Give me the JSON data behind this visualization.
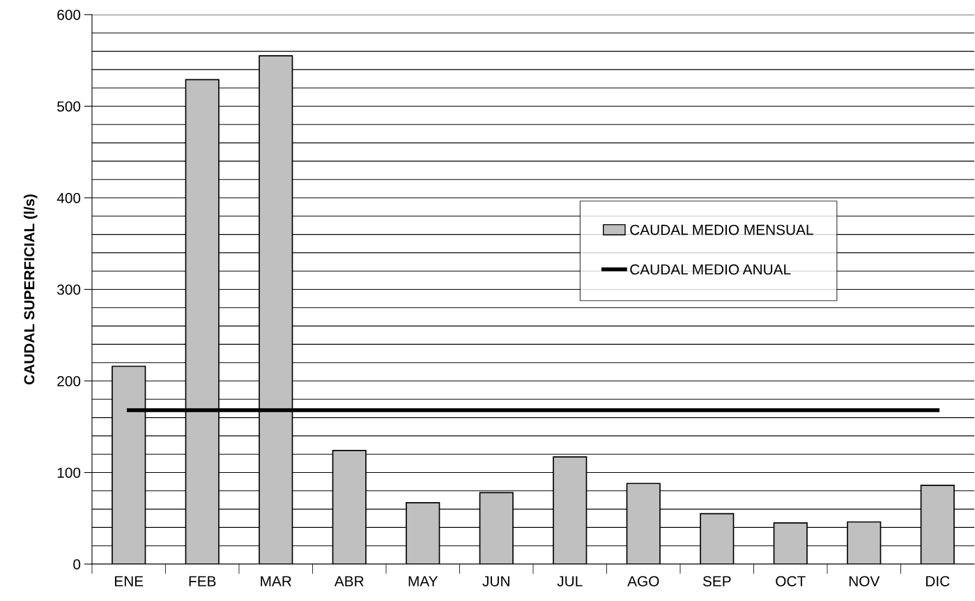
{
  "chart_data": {
    "type": "bar",
    "ylabel": "CAUDAL SUPERFICIAL (l/s)",
    "categories": [
      "ENE",
      "FEB",
      "MAR",
      "ABR",
      "MAY",
      "JUN",
      "JUL",
      "AGO",
      "SEP",
      "OCT",
      "NOV",
      "DIC"
    ],
    "series": [
      {
        "name": "CAUDAL MEDIO MENSUAL",
        "color": "#c0c0c0",
        "values": [
          216,
          529,
          555,
          124,
          67,
          78,
          117,
          88,
          55,
          45,
          46,
          86
        ]
      },
      {
        "name": "CAUDAL MEDIO ANUAL",
        "type": "line",
        "color": "#000000",
        "values": [
          168,
          168,
          168,
          168,
          168,
          168,
          168,
          168,
          168,
          168,
          168,
          168
        ]
      }
    ],
    "ylim": [
      0,
      600
    ],
    "yticks": [
      0,
      {
        "value": 20,
        "label": null
      },
      {
        "value": 40,
        "label": null
      },
      {
        "value": 60,
        "label": null
      },
      {
        "value": 80,
        "label": null
      },
      100,
      {
        "value": 120,
        "label": null
      },
      {
        "value": 140,
        "label": null
      },
      {
        "value": 160,
        "label": null
      },
      {
        "value": 180,
        "label": null
      },
      200,
      {
        "value": 220,
        "label": null
      },
      {
        "value": 240,
        "label": null
      },
      {
        "value": 260,
        "label": null
      },
      {
        "value": 280,
        "label": null
      },
      300,
      {
        "value": 320,
        "label": null
      },
      {
        "value": 340,
        "label": null
      },
      {
        "value": 360,
        "label": null
      },
      {
        "value": 380,
        "label": null
      },
      400,
      {
        "value": 420,
        "label": null
      },
      {
        "value": 440,
        "label": null
      },
      {
        "value": 460,
        "label": null
      },
      {
        "value": 480,
        "label": null
      },
      500,
      {
        "value": 520,
        "label": null
      },
      {
        "value": 540,
        "label": null
      },
      {
        "value": 560,
        "label": null
      },
      {
        "value": 580,
        "label": null
      },
      600
    ],
    "grid": "y",
    "legend": "right",
    "marker": "none",
    "line_style": "solid"
  }
}
